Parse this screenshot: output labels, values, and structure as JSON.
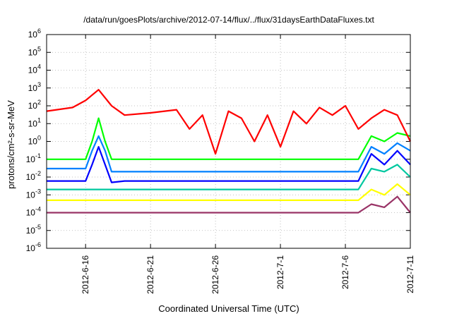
{
  "chart_data": {
    "type": "line",
    "title": "/data/run/goesPlots/archive/2012-07-14/flux/../flux/31daysEarthDataFluxes.txt",
    "xlabel": "Coordinated Universal Time (UTC)",
    "ylabel": "protons/cm²-s-sr-MeV",
    "yscale": "log",
    "ylim": [
      1e-06,
      1000000.0
    ],
    "xlim": [
      "2012-06-13",
      "2012-07-11"
    ],
    "grid": true,
    "x_ticks": [
      "2012-6-16",
      "2012-6-21",
      "2012-6-26",
      "2012-7-1",
      "2012-7-6",
      "2012-7-11"
    ],
    "y_ticks": [
      {
        "base": "10",
        "exp": "-6"
      },
      {
        "base": "10",
        "exp": "-5"
      },
      {
        "base": "10",
        "exp": "-4"
      },
      {
        "base": "10",
        "exp": "-3"
      },
      {
        "base": "10",
        "exp": "-2"
      },
      {
        "base": "10",
        "exp": "-1"
      },
      {
        "base": "10",
        "exp": "0"
      },
      {
        "base": "10",
        "exp": "1"
      },
      {
        "base": "10",
        "exp": "2"
      },
      {
        "base": "10",
        "exp": "3"
      },
      {
        "base": "10",
        "exp": "4"
      },
      {
        "base": "10",
        "exp": "5"
      },
      {
        "base": "10",
        "exp": "6"
      }
    ],
    "series": [
      {
        "color": "#ff0000",
        "x": [
          "2012-06-13",
          "2012-06-15",
          "2012-06-16",
          "2012-06-17",
          "2012-06-18",
          "2012-06-19",
          "2012-06-21",
          "2012-06-23",
          "2012-06-24",
          "2012-06-25",
          "2012-06-26",
          "2012-06-27",
          "2012-06-28",
          "2012-06-29",
          "2012-06-30",
          "2012-07-01",
          "2012-07-02",
          "2012-07-03",
          "2012-07-04",
          "2012-07-05",
          "2012-07-06",
          "2012-07-07",
          "2012-07-08",
          "2012-07-09",
          "2012-07-10",
          "2012-07-11"
        ],
        "y": [
          50,
          80,
          200,
          800,
          100,
          30,
          40,
          60,
          5,
          30,
          0.2,
          50,
          20,
          1,
          30,
          0.5,
          50,
          10,
          80,
          30,
          100,
          5,
          20,
          60,
          30,
          1
        ]
      },
      {
        "color": "#00ff00",
        "x": [
          "2012-06-13",
          "2012-06-16",
          "2012-06-16T12",
          "2012-06-17",
          "2012-06-17T12",
          "2012-06-18",
          "2012-06-19",
          "2012-07-01",
          "2012-07-07",
          "2012-07-08",
          "2012-07-09",
          "2012-07-10",
          "2012-07-11"
        ],
        "y": [
          0.1,
          0.1,
          1,
          20,
          1,
          0.1,
          0.1,
          0.1,
          0.1,
          2,
          1,
          3,
          2
        ]
      },
      {
        "color": "#0080ff",
        "x": [
          "2012-06-13",
          "2012-06-16",
          "2012-06-16T12",
          "2012-06-17",
          "2012-06-17T12",
          "2012-06-18",
          "2012-06-19",
          "2012-07-01",
          "2012-07-07",
          "2012-07-08",
          "2012-07-09",
          "2012-07-10",
          "2012-07-11"
        ],
        "y": [
          0.03,
          0.03,
          0.3,
          2,
          0.3,
          0.02,
          0.02,
          0.02,
          0.02,
          0.5,
          0.2,
          0.8,
          0.3
        ]
      },
      {
        "color": "#0000ff",
        "x": [
          "2012-06-13",
          "2012-06-16",
          "2012-06-16T12",
          "2012-06-17",
          "2012-06-17T12",
          "2012-06-18",
          "2012-06-19",
          "2012-07-01",
          "2012-07-07",
          "2012-07-08",
          "2012-07-09",
          "2012-07-10",
          "2012-07-11"
        ],
        "y": [
          0.006,
          0.006,
          0.05,
          0.5,
          0.05,
          0.005,
          0.006,
          0.006,
          0.006,
          0.2,
          0.05,
          0.3,
          0.05
        ]
      },
      {
        "color": "#00c8a0",
        "x": [
          "2012-06-13",
          "2012-06-17",
          "2012-06-18",
          "2012-07-01",
          "2012-07-07",
          "2012-07-08",
          "2012-07-09",
          "2012-07-10",
          "2012-07-11"
        ],
        "y": [
          0.002,
          0.002,
          0.002,
          0.002,
          0.002,
          0.03,
          0.02,
          0.05,
          0.01
        ]
      },
      {
        "color": "#ffff00",
        "x": [
          "2012-06-13",
          "2012-06-17",
          "2012-07-01",
          "2012-07-07",
          "2012-07-08",
          "2012-07-09",
          "2012-07-10",
          "2012-07-11"
        ],
        "y": [
          0.0005,
          0.0005,
          0.0005,
          0.0005,
          0.002,
          0.001,
          0.004,
          0.001
        ]
      },
      {
        "color": "#993366",
        "x": [
          "2012-06-13",
          "2012-06-17",
          "2012-07-01",
          "2012-07-07",
          "2012-07-08",
          "2012-07-09",
          "2012-07-10",
          "2012-07-11"
        ],
        "y": [
          0.0001,
          0.0001,
          0.0001,
          0.0001,
          0.0003,
          0.0002,
          0.0008,
          0.0001
        ]
      }
    ]
  }
}
